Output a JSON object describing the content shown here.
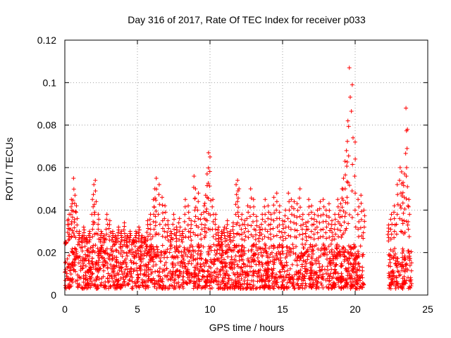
{
  "chart_data": {
    "type": "scatter",
    "title": "Day 316 of 2017, Rate Of TEC Index for receiver p033",
    "xlabel": "GPS time / hours",
    "ylabel": "ROTI / TECUs",
    "xlim": [
      0,
      25
    ],
    "ylim": [
      0,
      0.12
    ],
    "x_ticks": [
      "0",
      "5",
      "10",
      "15",
      "20",
      "25"
    ],
    "y_ticks": [
      "0",
      "0.02",
      "0.04",
      "0.06",
      "0.08",
      "0.1",
      "0.12"
    ],
    "grid": true,
    "legend": "none",
    "marker": "plus",
    "color": "#ff0000",
    "series": [
      {
        "x": [
          0.05,
          0.2,
          0.3,
          0.45,
          0.5,
          0.6,
          0.7,
          0.8,
          1.0,
          1.2,
          1.3,
          1.5,
          1.7,
          1.9,
          2.0,
          2.1,
          2.3,
          2.5,
          2.7,
          2.9,
          3.1,
          3.3,
          3.5,
          3.7,
          3.9,
          4.1,
          4.3,
          4.5,
          4.7,
          4.9,
          5.1,
          5.3,
          5.5,
          5.7,
          5.9,
          6.1,
          6.2,
          6.3,
          6.5,
          6.7,
          6.9,
          7.1,
          7.3,
          7.5,
          7.7,
          7.9,
          8.1,
          8.3,
          8.5,
          8.7,
          8.9,
          9.0,
          9.2,
          9.4,
          9.6,
          9.7,
          9.8,
          9.9,
          10.0,
          10.2,
          10.4,
          10.6,
          10.8,
          11.0,
          11.2,
          11.4,
          11.6,
          11.8,
          11.9,
          12.0,
          12.2,
          12.4,
          12.6,
          12.8,
          13.0,
          13.2,
          13.4,
          13.6,
          13.8,
          14.0,
          14.2,
          14.4,
          14.6,
          14.8,
          15.0,
          15.2,
          15.4,
          15.6,
          15.8,
          16.0,
          16.2,
          16.4,
          16.6,
          16.8,
          17.0,
          17.2,
          17.4,
          17.6,
          17.8,
          18.0,
          18.2,
          18.4,
          18.6,
          18.8,
          19.0,
          19.1,
          19.2,
          19.3,
          19.4,
          19.5,
          19.6,
          19.8,
          20.0,
          20.2,
          20.4,
          20.6,
          22.3,
          22.5,
          22.7,
          22.9,
          23.1,
          23.2,
          23.3,
          23.4,
          23.5,
          23.6,
          23.7
        ],
        "y": [
          0.025,
          0.035,
          0.038,
          0.045,
          0.043,
          0.055,
          0.047,
          0.042,
          0.03,
          0.028,
          0.032,
          0.027,
          0.03,
          0.045,
          0.052,
          0.054,
          0.038,
          0.03,
          0.028,
          0.038,
          0.035,
          0.03,
          0.028,
          0.032,
          0.03,
          0.034,
          0.028,
          0.03,
          0.026,
          0.03,
          0.032,
          0.028,
          0.027,
          0.035,
          0.038,
          0.045,
          0.05,
          0.055,
          0.052,
          0.046,
          0.042,
          0.035,
          0.03,
          0.038,
          0.032,
          0.036,
          0.03,
          0.045,
          0.042,
          0.035,
          0.056,
          0.05,
          0.048,
          0.038,
          0.042,
          0.047,
          0.057,
          0.067,
          0.065,
          0.045,
          0.038,
          0.032,
          0.03,
          0.032,
          0.035,
          0.03,
          0.034,
          0.052,
          0.054,
          0.05,
          0.038,
          0.035,
          0.042,
          0.05,
          0.045,
          0.037,
          0.032,
          0.038,
          0.045,
          0.042,
          0.038,
          0.046,
          0.048,
          0.042,
          0.035,
          0.04,
          0.048,
          0.045,
          0.044,
          0.043,
          0.05,
          0.038,
          0.034,
          0.045,
          0.042,
          0.038,
          0.04,
          0.044,
          0.045,
          0.04,
          0.043,
          0.035,
          0.038,
          0.045,
          0.043,
          0.05,
          0.055,
          0.063,
          0.068,
          0.082,
          0.107,
          0.099,
          0.072,
          0.045,
          0.047,
          0.04,
          0.033,
          0.038,
          0.042,
          0.052,
          0.06,
          0.058,
          0.053,
          0.057,
          0.088,
          0.078,
          0.045
        ]
      }
    ],
    "bands": [
      [
        0.0,
        20.6,
        0.003,
        0.024
      ],
      [
        22.3,
        23.9,
        0.003,
        0.022
      ]
    ]
  }
}
